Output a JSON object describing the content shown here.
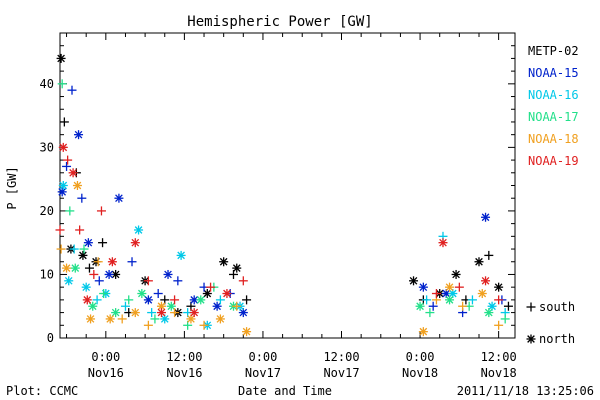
{
  "chart_data": {
    "type": "scatter",
    "title": "Hemispheric Power [GW]",
    "ylabel": "P [GW]",
    "xlabel": "Date and Time",
    "ylim": [
      0,
      48
    ],
    "xlim": [
      "2011-11-15T17:00",
      "2011-11-18T14:30"
    ],
    "yticks": [
      0,
      10,
      20,
      30,
      40
    ],
    "xticks": [
      {
        "t": "2011-11-16T00:00",
        "time": "0:00",
        "date": "Nov16"
      },
      {
        "t": "2011-11-16T12:00",
        "time": "12:00",
        "date": "Nov16"
      },
      {
        "t": "2011-11-17T00:00",
        "time": "0:00",
        "date": "Nov17"
      },
      {
        "t": "2011-11-17T12:00",
        "time": "12:00",
        "date": "Nov17"
      },
      {
        "t": "2011-11-18T00:00",
        "time": "0:00",
        "date": "Nov18"
      },
      {
        "t": "2011-11-18T12:00",
        "time": "12:00",
        "date": "Nov18"
      }
    ],
    "grid": false,
    "legend_position": "right",
    "marker_legend": [
      {
        "marker": "plus",
        "label": "south"
      },
      {
        "marker": "star",
        "label": "north"
      }
    ],
    "series": [
      {
        "name": "METP-02",
        "color": "#000000",
        "points": [
          [
            "2011-11-15T17:10",
            44,
            "star"
          ],
          [
            "2011-11-15T17:40",
            34,
            "plus"
          ],
          [
            "2011-11-15T18:40",
            14,
            "star"
          ],
          [
            "2011-11-15T19:30",
            26,
            "plus"
          ],
          [
            "2011-11-15T20:30",
            13,
            "star"
          ],
          [
            "2011-11-15T21:30",
            11,
            "plus"
          ],
          [
            "2011-11-15T22:30",
            12,
            "star"
          ],
          [
            "2011-11-15T23:30",
            15,
            "plus"
          ],
          [
            "2011-11-16T01:30",
            10,
            "star"
          ],
          [
            "2011-11-16T03:30",
            4,
            "plus"
          ],
          [
            "2011-11-16T06:00",
            9,
            "star"
          ],
          [
            "2011-11-16T09:00",
            6,
            "plus"
          ],
          [
            "2011-11-16T11:00",
            4,
            "star"
          ],
          [
            "2011-11-16T13:00",
            5,
            "plus"
          ],
          [
            "2011-11-16T15:30",
            7,
            "star"
          ],
          [
            "2011-11-16T18:00",
            12,
            "star"
          ],
          [
            "2011-11-16T19:30",
            10,
            "plus"
          ],
          [
            "2011-11-16T20:00",
            11,
            "star"
          ],
          [
            "2011-11-16T21:30",
            6,
            "plus"
          ],
          [
            "2011-11-17T23:00",
            9,
            "star"
          ],
          [
            "2011-11-18T00:30",
            6,
            "plus"
          ],
          [
            "2011-11-18T03:00",
            7,
            "star"
          ],
          [
            "2011-11-18T05:30",
            10,
            "star"
          ],
          [
            "2011-11-18T07:00",
            6,
            "plus"
          ],
          [
            "2011-11-18T09:00",
            12,
            "star"
          ],
          [
            "2011-11-18T10:30",
            13,
            "plus"
          ],
          [
            "2011-11-18T12:00",
            8,
            "star"
          ],
          [
            "2011-11-18T13:30",
            5,
            "plus"
          ]
        ]
      },
      {
        "name": "NOAA-15",
        "color": "#0022cc",
        "points": [
          [
            "2011-11-15T17:20",
            23,
            "star"
          ],
          [
            "2011-11-15T18:00",
            27,
            "plus"
          ],
          [
            "2011-11-15T18:50",
            39,
            "plus"
          ],
          [
            "2011-11-15T19:50",
            32,
            "star"
          ],
          [
            "2011-11-15T20:20",
            22,
            "plus"
          ],
          [
            "2011-11-15T21:20",
            15,
            "star"
          ],
          [
            "2011-11-15T23:00",
            9,
            "plus"
          ],
          [
            "2011-11-16T00:30",
            10,
            "star"
          ],
          [
            "2011-11-16T02:00",
            22,
            "star"
          ],
          [
            "2011-11-16T04:00",
            12,
            "plus"
          ],
          [
            "2011-11-16T06:30",
            6,
            "star"
          ],
          [
            "2011-11-16T08:00",
            7,
            "plus"
          ],
          [
            "2011-11-16T09:30",
            10,
            "star"
          ],
          [
            "2011-11-16T11:00",
            9,
            "plus"
          ],
          [
            "2011-11-16T13:30",
            6,
            "star"
          ],
          [
            "2011-11-16T15:00",
            8,
            "plus"
          ],
          [
            "2011-11-16T17:00",
            5,
            "star"
          ],
          [
            "2011-11-16T19:00",
            7,
            "plus"
          ],
          [
            "2011-11-16T21:00",
            4,
            "star"
          ],
          [
            "2011-11-18T00:30",
            8,
            "star"
          ],
          [
            "2011-11-18T02:00",
            5,
            "plus"
          ],
          [
            "2011-11-18T04:00",
            7,
            "star"
          ],
          [
            "2011-11-18T06:30",
            4,
            "plus"
          ],
          [
            "2011-11-18T10:00",
            19,
            "star"
          ],
          [
            "2011-11-18T12:30",
            6,
            "plus"
          ]
        ]
      },
      {
        "name": "NOAA-16",
        "color": "#00c8e8",
        "points": [
          [
            "2011-11-15T17:30",
            24,
            "star"
          ],
          [
            "2011-11-15T18:20",
            9,
            "star"
          ],
          [
            "2011-11-15T19:10",
            14,
            "plus"
          ],
          [
            "2011-11-15T21:00",
            8,
            "star"
          ],
          [
            "2011-11-15T22:40",
            6,
            "plus"
          ],
          [
            "2011-11-16T00:00",
            7,
            "star"
          ],
          [
            "2011-11-16T03:00",
            5,
            "plus"
          ],
          [
            "2011-11-16T05:00",
            17,
            "star"
          ],
          [
            "2011-11-16T07:00",
            4,
            "plus"
          ],
          [
            "2011-11-16T09:00",
            3,
            "star"
          ],
          [
            "2011-11-16T11:30",
            13,
            "star"
          ],
          [
            "2011-11-16T12:30",
            4,
            "plus"
          ],
          [
            "2011-11-16T15:30",
            2,
            "star"
          ],
          [
            "2011-11-16T17:30",
            6,
            "plus"
          ],
          [
            "2011-11-16T20:30",
            5,
            "star"
          ],
          [
            "2011-11-18T01:00",
            6,
            "plus"
          ],
          [
            "2011-11-18T03:30",
            16,
            "plus"
          ],
          [
            "2011-11-18T05:00",
            7,
            "star"
          ],
          [
            "2011-11-18T08:00",
            6,
            "plus"
          ],
          [
            "2011-11-18T11:00",
            5,
            "star"
          ],
          [
            "2011-11-18T13:00",
            4,
            "plus"
          ]
        ]
      },
      {
        "name": "NOAA-17",
        "color": "#22e08a",
        "points": [
          [
            "2011-11-15T17:20",
            40,
            "plus"
          ],
          [
            "2011-11-15T18:30",
            20,
            "plus"
          ],
          [
            "2011-11-15T19:20",
            11,
            "star"
          ],
          [
            "2011-11-15T20:40",
            14,
            "plus"
          ],
          [
            "2011-11-15T22:00",
            5,
            "star"
          ],
          [
            "2011-11-15T23:40",
            7,
            "plus"
          ],
          [
            "2011-11-16T01:30",
            4,
            "star"
          ],
          [
            "2011-11-16T03:30",
            6,
            "plus"
          ],
          [
            "2011-11-16T05:30",
            7,
            "star"
          ],
          [
            "2011-11-16T07:30",
            3,
            "plus"
          ],
          [
            "2011-11-16T10:00",
            5,
            "star"
          ],
          [
            "2011-11-16T12:30",
            2,
            "plus"
          ],
          [
            "2011-11-16T14:30",
            6,
            "star"
          ],
          [
            "2011-11-16T16:30",
            8,
            "plus"
          ],
          [
            "2011-11-16T19:30",
            5,
            "star"
          ],
          [
            "2011-11-18T00:00",
            5,
            "star"
          ],
          [
            "2011-11-18T01:30",
            4,
            "plus"
          ],
          [
            "2011-11-18T04:30",
            6,
            "star"
          ],
          [
            "2011-11-18T07:30",
            5,
            "plus"
          ],
          [
            "2011-11-18T10:30",
            4,
            "star"
          ],
          [
            "2011-11-18T13:00",
            3,
            "plus"
          ]
        ]
      },
      {
        "name": "NOAA-18",
        "color": "#f0a020",
        "points": [
          [
            "2011-11-15T17:10",
            14,
            "plus"
          ],
          [
            "2011-11-15T18:00",
            11,
            "star"
          ],
          [
            "2011-11-15T19:40",
            24,
            "star"
          ],
          [
            "2011-11-15T21:40",
            3,
            "star"
          ],
          [
            "2011-11-15T22:50",
            12,
            "plus"
          ],
          [
            "2011-11-16T00:40",
            3,
            "star"
          ],
          [
            "2011-11-16T02:30",
            3,
            "plus"
          ],
          [
            "2011-11-16T04:30",
            4,
            "star"
          ],
          [
            "2011-11-16T06:30",
            2,
            "plus"
          ],
          [
            "2011-11-16T08:30",
            5,
            "star"
          ],
          [
            "2011-11-16T10:30",
            4,
            "plus"
          ],
          [
            "2011-11-16T13:00",
            3,
            "star"
          ],
          [
            "2011-11-16T15:00",
            2,
            "plus"
          ],
          [
            "2011-11-16T17:30",
            3,
            "star"
          ],
          [
            "2011-11-16T20:00",
            5,
            "plus"
          ],
          [
            "2011-11-16T21:30",
            1,
            "star"
          ],
          [
            "2011-11-18T00:30",
            1,
            "star"
          ],
          [
            "2011-11-18T02:30",
            6,
            "plus"
          ],
          [
            "2011-11-18T04:30",
            8,
            "star"
          ],
          [
            "2011-11-18T06:30",
            5,
            "plus"
          ],
          [
            "2011-11-18T09:30",
            7,
            "star"
          ],
          [
            "2011-11-18T12:00",
            2,
            "plus"
          ]
        ]
      },
      {
        "name": "NOAA-19",
        "color": "#e02020",
        "points": [
          [
            "2011-11-15T17:00",
            17,
            "plus"
          ],
          [
            "2011-11-15T17:30",
            30,
            "star"
          ],
          [
            "2011-11-15T18:10",
            28,
            "plus"
          ],
          [
            "2011-11-15T19:00",
            26,
            "star"
          ],
          [
            "2011-11-15T20:00",
            17,
            "plus"
          ],
          [
            "2011-11-15T21:10",
            6,
            "star"
          ],
          [
            "2011-11-15T22:10",
            10,
            "plus"
          ],
          [
            "2011-11-15T23:20",
            20,
            "plus"
          ],
          [
            "2011-11-16T01:00",
            12,
            "star"
          ],
          [
            "2011-11-16T04:30",
            15,
            "star"
          ],
          [
            "2011-11-16T06:30",
            9,
            "plus"
          ],
          [
            "2011-11-16T08:30",
            4,
            "star"
          ],
          [
            "2011-11-16T10:30",
            6,
            "plus"
          ],
          [
            "2011-11-16T13:30",
            4,
            "star"
          ],
          [
            "2011-11-16T16:00",
            8,
            "plus"
          ],
          [
            "2011-11-16T18:30",
            7,
            "star"
          ],
          [
            "2011-11-16T21:00",
            9,
            "plus"
          ],
          [
            "2011-11-18T02:30",
            7,
            "plus"
          ],
          [
            "2011-11-18T03:30",
            15,
            "star"
          ],
          [
            "2011-11-18T06:00",
            8,
            "plus"
          ],
          [
            "2011-11-18T10:00",
            9,
            "star"
          ],
          [
            "2011-11-18T12:00",
            6,
            "plus"
          ]
        ]
      }
    ]
  },
  "footer": {
    "left": "Plot: CCMC",
    "center": "Date and Time",
    "right": "2011/11/18 13:25:06"
  },
  "legend_labels": {
    "south": "south",
    "north": "north"
  }
}
